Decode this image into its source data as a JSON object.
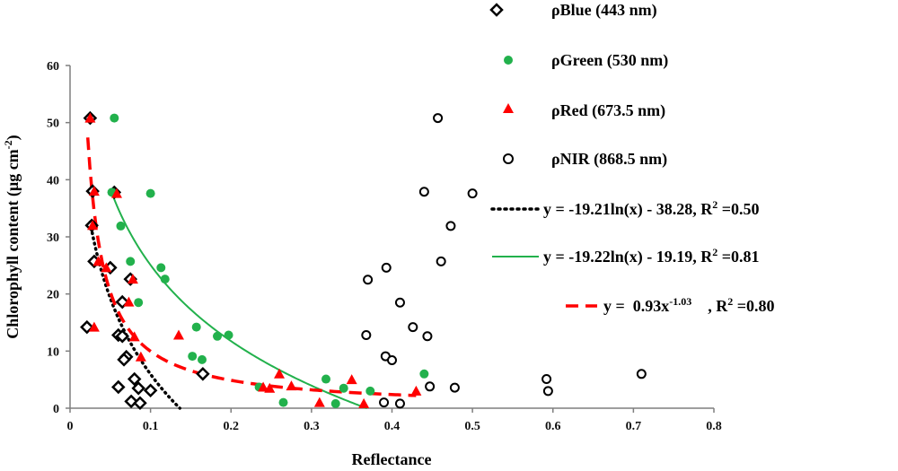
{
  "chart_data": {
    "type": "scatter",
    "title": "",
    "xlabel": "Reflectance",
    "ylabel": "Chlorophyll content (μg cm⁻²)",
    "ylabel_base": "Chlorophyll content (μg cm",
    "ylabel_sup": "-2",
    "ylabel_end": ")",
    "xlim": [
      0,
      0.8
    ],
    "ylim": [
      0,
      60
    ],
    "xticks": [
      "0",
      "0.1",
      "0.2",
      "0.3",
      "0.4",
      "0.5",
      "0.6",
      "0.7",
      "0.8"
    ],
    "yticks": [
      "0",
      "10",
      "20",
      "30",
      "40",
      "50",
      "60"
    ],
    "grid": false,
    "legend_position": "right",
    "series": [
      {
        "name": "ρBlue (443 nm)",
        "marker": "diamond-open",
        "color": "#000000",
        "points": [
          [
            0.025,
            50.8
          ],
          [
            0.028,
            38
          ],
          [
            0.027,
            32
          ],
          [
            0.021,
            14.2
          ],
          [
            0.03,
            25.7
          ],
          [
            0.05,
            24.6
          ],
          [
            0.065,
            18.6
          ],
          [
            0.06,
            12.8
          ],
          [
            0.065,
            12.6
          ],
          [
            0.07,
            9
          ],
          [
            0.067,
            8.5
          ],
          [
            0.075,
            22.6
          ],
          [
            0.08,
            5.1
          ],
          [
            0.06,
            3.7
          ],
          [
            0.085,
            3.5
          ],
          [
            0.1,
            3.1
          ],
          [
            0.076,
            1.2
          ],
          [
            0.087,
            0.9
          ],
          [
            0.165,
            6
          ],
          [
            0.055,
            37.8
          ]
        ]
      },
      {
        "name": "ρGreen (530 nm)",
        "marker": "circle-filled",
        "color": "#22b14c",
        "points": [
          [
            0.055,
            50.8
          ],
          [
            0.052,
            37.8
          ],
          [
            0.1,
            37.6
          ],
          [
            0.063,
            31.9
          ],
          [
            0.075,
            25.7
          ],
          [
            0.113,
            24.6
          ],
          [
            0.118,
            22.6
          ],
          [
            0.085,
            18.5
          ],
          [
            0.157,
            14.2
          ],
          [
            0.197,
            12.8
          ],
          [
            0.183,
            12.6
          ],
          [
            0.152,
            9.1
          ],
          [
            0.164,
            8.5
          ],
          [
            0.44,
            6
          ],
          [
            0.318,
            5.1
          ],
          [
            0.235,
            3.7
          ],
          [
            0.34,
            3.5
          ],
          [
            0.373,
            3
          ],
          [
            0.265,
            1
          ],
          [
            0.33,
            0.8
          ]
        ]
      },
      {
        "name": "ρRed (673.5 nm)",
        "marker": "triangle-filled",
        "color": "#ff0000",
        "points": [
          [
            0.025,
            50.8
          ],
          [
            0.03,
            38
          ],
          [
            0.058,
            37.6
          ],
          [
            0.028,
            32
          ],
          [
            0.035,
            25.7
          ],
          [
            0.045,
            24.6
          ],
          [
            0.078,
            22.6
          ],
          [
            0.073,
            18.6
          ],
          [
            0.03,
            14.2
          ],
          [
            0.08,
            12.5
          ],
          [
            0.135,
            12.8
          ],
          [
            0.088,
            9
          ],
          [
            0.26,
            6
          ],
          [
            0.35,
            5
          ],
          [
            0.24,
            3.7
          ],
          [
            0.275,
            3.9
          ],
          [
            0.31,
            1
          ],
          [
            0.43,
            3
          ],
          [
            0.365,
            0.8
          ],
          [
            0.248,
            3.5
          ]
        ]
      },
      {
        "name": "ρNIR (868.5 nm)",
        "marker": "circle-open",
        "color": "#000000",
        "points": [
          [
            0.457,
            50.8
          ],
          [
            0.44,
            37.9
          ],
          [
            0.5,
            37.6
          ],
          [
            0.473,
            31.9
          ],
          [
            0.461,
            25.7
          ],
          [
            0.393,
            24.6
          ],
          [
            0.37,
            22.5
          ],
          [
            0.41,
            18.5
          ],
          [
            0.426,
            14.2
          ],
          [
            0.368,
            12.8
          ],
          [
            0.444,
            12.6
          ],
          [
            0.392,
            9.1
          ],
          [
            0.4,
            8.4
          ],
          [
            0.71,
            6
          ],
          [
            0.592,
            5.1
          ],
          [
            0.447,
            3.8
          ],
          [
            0.478,
            3.6
          ],
          [
            0.594,
            3
          ],
          [
            0.39,
            1
          ],
          [
            0.41,
            0.8
          ]
        ]
      }
    ],
    "fits": [
      {
        "label": "y = -19.21ln(x) - 38.28, R² =0.50",
        "label_html_parts": [
          "y = -19.21ln(x) - 38.28, R",
          "2",
          " =0.50"
        ],
        "model": "log",
        "a": -19.21,
        "b": -38.28,
        "r2": 0.5,
        "x_range": [
          0.025,
          0.14
        ],
        "color": "#000000",
        "style": "dotted"
      },
      {
        "label": "y = -19.22ln(x) - 19.19, R² =0.81",
        "label_html_parts": [
          "y = -19.22ln(x) - 19.19, R",
          "2",
          " =0.81"
        ],
        "model": "log",
        "a": -19.22,
        "b": -19.19,
        "r2": 0.81,
        "x_range": [
          0.052,
          0.375
        ],
        "color": "#22b14c",
        "style": "solid"
      },
      {
        "label": "y =  0.93x^-1.03    , R² =0.80",
        "label_parts": {
          "pre": "y =  0.93x",
          "exp": "-1.03",
          "post": "    , R",
          "r2sup": "2",
          "end": " =0.80"
        },
        "model": "power",
        "a": 0.93,
        "b": -1.03,
        "r2": 0.8,
        "x_range": [
          0.022,
          0.43
        ],
        "color": "#ff0000",
        "style": "dashed"
      }
    ]
  }
}
